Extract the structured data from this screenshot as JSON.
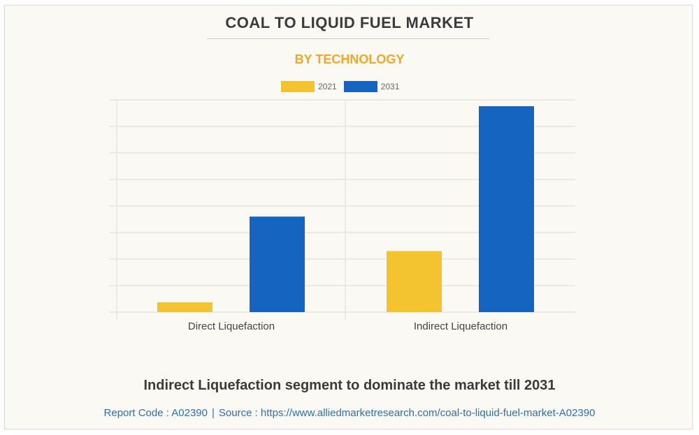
{
  "header": {
    "title": "COAL TO LIQUID FUEL MARKET",
    "subtitle": "BY TECHNOLOGY"
  },
  "chart_data": {
    "type": "bar",
    "title": "COAL TO LIQUID FUEL MARKET",
    "subtitle": "BY TECHNOLOGY",
    "xlabel": "",
    "ylabel": "",
    "y_axis_labels_shown": false,
    "y_units_note": "relative units (no y-axis tick labels shown; values estimated in gridline intervals)",
    "ylim": [
      0,
      8
    ],
    "grid": true,
    "legend_position": "top-center",
    "categories": [
      "Direct Liquefaction",
      "Indirect Liquefaction"
    ],
    "series": [
      {
        "name": "2021",
        "color": "#f4c430",
        "values": [
          0.37,
          2.3
        ]
      },
      {
        "name": "2031",
        "color": "#1565c0",
        "values": [
          3.6,
          7.76
        ]
      }
    ]
  },
  "headline": "Indirect Liquefaction segment to dominate the market till 2031",
  "footer": {
    "report_code": "Report Code : A02390",
    "separator": "|",
    "source": "Source : https://www.alliedmarketresearch.com/coal-to-liquid-fuel-market-A02390"
  },
  "colors": {
    "title": "#3b3b3b",
    "subtitle": "#f5a623",
    "link": "#2f6db5",
    "grid": "#e6e5e0"
  }
}
